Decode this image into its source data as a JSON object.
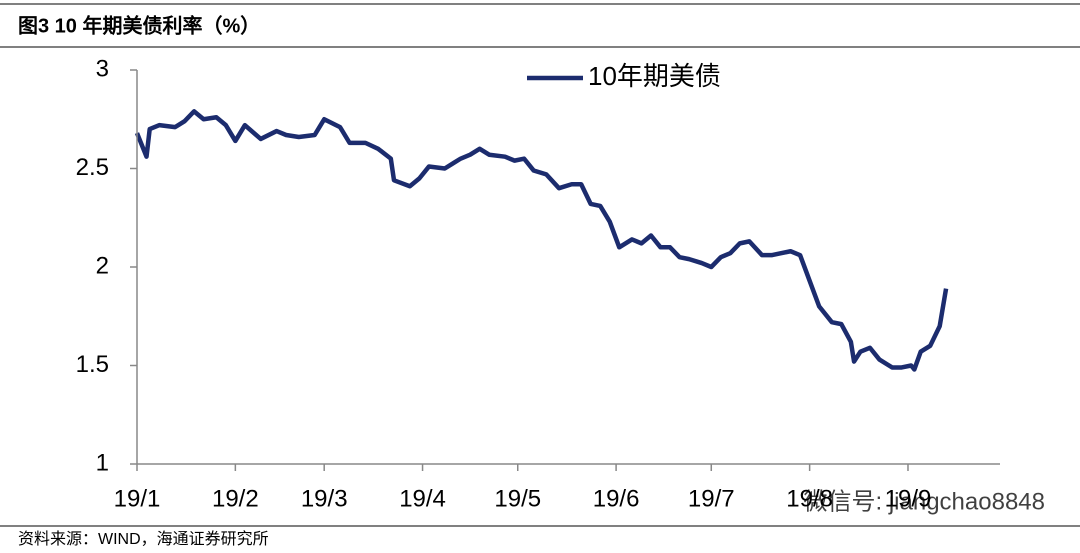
{
  "chart_data": {
    "type": "line",
    "title": "图3  10 年期美债利率（%）",
    "source": "资料来源：WIND，海通证券研究所",
    "watermark": "微信号: jiangchao8848",
    "x": [
      0,
      3,
      4,
      7,
      12,
      15,
      18,
      21,
      25,
      28,
      31,
      34,
      39,
      44,
      47,
      51,
      56,
      59,
      64,
      67,
      72,
      76,
      80,
      81,
      86,
      89,
      92,
      97,
      100,
      102,
      105,
      108,
      111,
      116,
      119,
      122,
      125,
      129,
      133,
      137,
      140,
      143,
      146,
      149,
      152,
      156,
      159,
      162,
      165,
      168,
      171,
      174,
      178,
      181,
      184,
      187,
      190,
      193,
      197,
      200,
      203,
      206,
      209,
      212,
      215,
      219,
      222,
      225,
      226,
      228,
      231,
      234,
      238,
      241,
      244,
      245,
      247,
      250,
      253,
      255
    ],
    "series": [
      {
        "name": "10年期美债",
        "color": "#1c2c6e",
        "values": [
          2.68,
          2.56,
          2.7,
          2.72,
          2.71,
          2.74,
          2.79,
          2.75,
          2.76,
          2.72,
          2.64,
          2.72,
          2.65,
          2.69,
          2.67,
          2.66,
          2.67,
          2.75,
          2.71,
          2.63,
          2.63,
          2.6,
          2.55,
          2.44,
          2.41,
          2.45,
          2.51,
          2.5,
          2.53,
          2.55,
          2.57,
          2.6,
          2.57,
          2.56,
          2.54,
          2.55,
          2.49,
          2.47,
          2.4,
          2.42,
          2.42,
          2.32,
          2.31,
          2.23,
          2.1,
          2.14,
          2.12,
          2.16,
          2.1,
          2.1,
          2.05,
          2.04,
          2.02,
          2.0,
          2.05,
          2.07,
          2.12,
          2.13,
          2.06,
          2.06,
          2.07,
          2.08,
          2.06,
          1.93,
          1.8,
          1.72,
          1.71,
          1.62,
          1.52,
          1.57,
          1.59,
          1.53,
          1.49,
          1.49,
          1.5,
          1.48,
          1.57,
          1.6,
          1.7,
          1.89
        ]
      }
    ],
    "xlim": [
      0,
      272
    ],
    "xticks": [
      {
        "value": 0,
        "label": "19/1"
      },
      {
        "value": 31,
        "label": "19/2"
      },
      {
        "value": 59,
        "label": "19/3"
      },
      {
        "value": 90,
        "label": "19/4"
      },
      {
        "value": 120,
        "label": "19/5"
      },
      {
        "value": 151,
        "label": "19/6"
      },
      {
        "value": 181,
        "label": "19/7"
      },
      {
        "value": 212,
        "label": "19/8"
      },
      {
        "value": 243,
        "label": "19/9"
      }
    ],
    "ylim": [
      1,
      3
    ],
    "yticks": [
      1,
      1.5,
      2,
      2.5,
      3
    ],
    "legend": "top"
  }
}
